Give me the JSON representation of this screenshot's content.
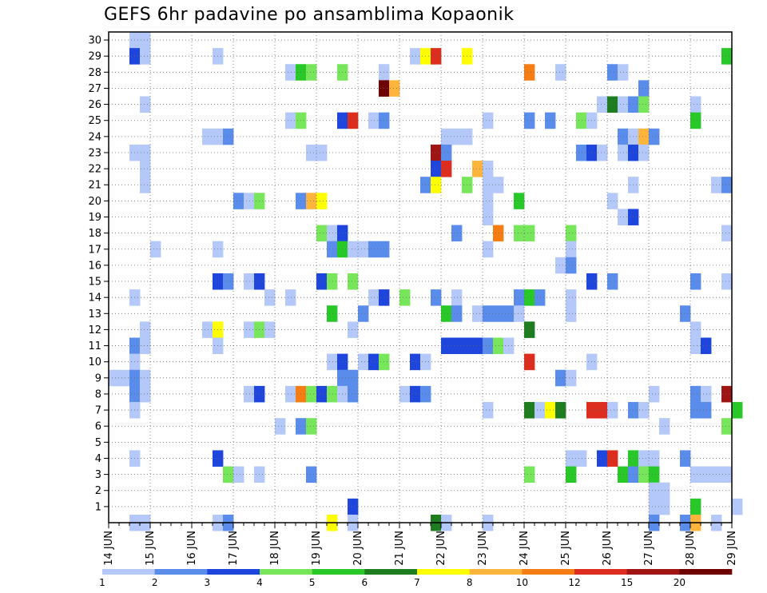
{
  "chart_data": {
    "type": "heatmap",
    "title": "GEFS 6hr padavine po ansamblima Kopaonik",
    "xlabel": "",
    "ylabel": "",
    "y_ticks": [
      "1",
      "2",
      "3",
      "4",
      "5",
      "6",
      "7",
      "8",
      "9",
      "10",
      "11",
      "12",
      "13",
      "14",
      "15",
      "16",
      "17",
      "18",
      "19",
      "20",
      "21",
      "22",
      "23",
      "24",
      "25",
      "26",
      "27",
      "28",
      "29",
      "30"
    ],
    "x_ticks": [
      "14 JUN",
      "15 JUN",
      "16 JUN",
      "17 JUN",
      "18 JUN",
      "19 JUN",
      "20 JUN",
      "21 JUN",
      "22 JUN",
      "23 JUN",
      "24 JUN",
      "25 JUN",
      "26 JUN",
      "27 JUN",
      "28 JUN",
      "29 JUN"
    ],
    "ylim": [
      0,
      30
    ],
    "grid": true,
    "colorbar": {
      "labels": [
        "1",
        "2",
        "3",
        "4",
        "5",
        "6",
        "7",
        "8",
        "10",
        "12",
        "15",
        "20"
      ],
      "colors": [
        "#b4c8fa",
        "#5a8ceb",
        "#1e46dc",
        "#78e65a",
        "#28c828",
        "#1e7d1e",
        "#ffff00",
        "#ffb43c",
        "#f57d14",
        "#dc2d1e",
        "#a01414",
        "#6e0000"
      ]
    },
    "cells": [
      [
        0.5,
        30,
        1
      ],
      [
        0.75,
        30,
        1
      ],
      [
        0.5,
        29,
        3
      ],
      [
        0.75,
        29,
        1
      ],
      [
        2.5,
        29,
        1
      ],
      [
        7.25,
        29,
        1
      ],
      [
        7.5,
        29,
        7
      ],
      [
        7.75,
        29,
        10
      ],
      [
        8.5,
        29,
        7
      ],
      [
        14.75,
        29,
        5
      ],
      [
        4.25,
        28,
        1
      ],
      [
        4.5,
        28,
        5
      ],
      [
        4.75,
        28,
        4
      ],
      [
        5.5,
        28,
        4
      ],
      [
        6.5,
        28,
        1
      ],
      [
        10,
        28,
        9
      ],
      [
        10.75,
        28,
        1
      ],
      [
        12,
        28,
        2
      ],
      [
        12.25,
        28,
        1
      ],
      [
        6.5,
        27,
        12
      ],
      [
        6.75,
        27,
        8
      ],
      [
        12.75,
        27,
        2
      ],
      [
        0.75,
        26,
        1
      ],
      [
        11.75,
        26,
        1
      ],
      [
        12,
        26,
        6
      ],
      [
        12.25,
        26,
        1
      ],
      [
        12.5,
        26,
        2
      ],
      [
        12.75,
        26,
        4
      ],
      [
        14,
        26,
        1
      ],
      [
        4.25,
        25,
        1
      ],
      [
        4.5,
        25,
        4
      ],
      [
        5.5,
        25,
        3
      ],
      [
        5.75,
        25,
        10
      ],
      [
        6.25,
        25,
        1
      ],
      [
        6.5,
        25,
        2
      ],
      [
        9,
        25,
        1
      ],
      [
        10,
        25,
        2
      ],
      [
        10.5,
        25,
        2
      ],
      [
        11.25,
        25,
        4
      ],
      [
        11.5,
        25,
        1
      ],
      [
        14,
        25,
        5
      ],
      [
        2.25,
        24,
        1
      ],
      [
        2.5,
        24,
        1
      ],
      [
        2.75,
        24,
        2
      ],
      [
        8,
        24,
        1
      ],
      [
        8.25,
        24,
        1
      ],
      [
        8.5,
        24,
        1
      ],
      [
        12.25,
        24,
        2
      ],
      [
        12.5,
        24,
        1
      ],
      [
        12.75,
        24,
        8
      ],
      [
        13,
        24,
        2
      ],
      [
        0.5,
        23,
        1
      ],
      [
        0.75,
        23,
        1
      ],
      [
        4.75,
        23,
        1
      ],
      [
        5,
        23,
        1
      ],
      [
        7.75,
        23,
        11
      ],
      [
        8,
        23,
        2
      ],
      [
        11.25,
        23,
        2
      ],
      [
        11.5,
        23,
        3
      ],
      [
        11.75,
        23,
        1
      ],
      [
        12.25,
        23,
        1
      ],
      [
        12.5,
        23,
        3
      ],
      [
        12.75,
        23,
        1
      ],
      [
        0.75,
        22,
        1
      ],
      [
        7.75,
        22,
        3
      ],
      [
        8,
        22,
        10
      ],
      [
        8.75,
        22,
        8
      ],
      [
        9,
        22,
        1
      ],
      [
        0.75,
        21,
        1
      ],
      [
        7.5,
        21,
        2
      ],
      [
        7.75,
        21,
        7
      ],
      [
        8.5,
        21,
        4
      ],
      [
        9,
        21,
        1
      ],
      [
        9.25,
        21,
        1
      ],
      [
        12.5,
        21,
        1
      ],
      [
        14.5,
        21,
        1
      ],
      [
        14.75,
        21,
        2
      ],
      [
        3,
        20,
        2
      ],
      [
        3.25,
        20,
        1
      ],
      [
        3.5,
        20,
        4
      ],
      [
        4.5,
        20,
        2
      ],
      [
        4.75,
        20,
        8
      ],
      [
        5,
        20,
        7
      ],
      [
        9,
        20,
        1
      ],
      [
        9.75,
        20,
        5
      ],
      [
        12,
        20,
        1
      ],
      [
        9,
        19,
        1
      ],
      [
        12.25,
        19,
        1
      ],
      [
        12.5,
        19,
        3
      ],
      [
        5,
        18,
        4
      ],
      [
        5.25,
        18,
        1
      ],
      [
        5.5,
        18,
        3
      ],
      [
        8.25,
        18,
        2
      ],
      [
        9.25,
        18,
        9
      ],
      [
        9.75,
        18,
        4
      ],
      [
        10,
        18,
        4
      ],
      [
        11,
        18,
        4
      ],
      [
        14.75,
        18,
        1
      ],
      [
        1,
        17,
        1
      ],
      [
        2.5,
        17,
        1
      ],
      [
        5.25,
        17,
        2
      ],
      [
        5.5,
        17,
        5
      ],
      [
        5.75,
        17,
        1
      ],
      [
        6,
        17,
        1
      ],
      [
        6.25,
        17,
        2
      ],
      [
        6.5,
        17,
        2
      ],
      [
        9,
        17,
        1
      ],
      [
        11,
        17,
        1
      ],
      [
        10.75,
        16,
        1
      ],
      [
        11,
        16,
        2
      ],
      [
        2.5,
        15,
        3
      ],
      [
        2.75,
        15,
        2
      ],
      [
        3.25,
        15,
        1
      ],
      [
        3.5,
        15,
        3
      ],
      [
        5,
        15,
        3
      ],
      [
        5.25,
        15,
        4
      ],
      [
        5.75,
        15,
        4
      ],
      [
        11.5,
        15,
        3
      ],
      [
        12,
        15,
        2
      ],
      [
        14,
        15,
        2
      ],
      [
        14.75,
        15,
        1
      ],
      [
        0.5,
        14,
        1
      ],
      [
        3.75,
        14,
        1
      ],
      [
        4.25,
        14,
        1
      ],
      [
        6.25,
        14,
        1
      ],
      [
        6.5,
        14,
        3
      ],
      [
        7,
        14,
        4
      ],
      [
        7.75,
        14,
        2
      ],
      [
        8.25,
        14,
        1
      ],
      [
        9.75,
        14,
        2
      ],
      [
        10,
        14,
        5
      ],
      [
        10.25,
        14,
        2
      ],
      [
        11,
        14,
        1
      ],
      [
        5.25,
        13,
        5
      ],
      [
        6,
        13,
        2
      ],
      [
        8,
        13,
        5
      ],
      [
        8.25,
        13,
        2
      ],
      [
        8.75,
        13,
        1
      ],
      [
        9,
        13,
        2
      ],
      [
        9.25,
        13,
        2
      ],
      [
        9.5,
        13,
        2
      ],
      [
        9.75,
        13,
        1
      ],
      [
        11,
        13,
        1
      ],
      [
        13.75,
        13,
        2
      ],
      [
        0.75,
        12,
        1
      ],
      [
        2.25,
        12,
        1
      ],
      [
        2.5,
        12,
        7
      ],
      [
        3.25,
        12,
        1
      ],
      [
        3.5,
        12,
        4
      ],
      [
        3.75,
        12,
        1
      ],
      [
        5.75,
        12,
        1
      ],
      [
        10,
        12,
        6
      ],
      [
        14,
        12,
        1
      ],
      [
        0.5,
        11,
        2
      ],
      [
        0.75,
        11,
        1
      ],
      [
        2.5,
        11,
        1
      ],
      [
        8,
        11,
        3
      ],
      [
        8.25,
        11,
        3
      ],
      [
        8.5,
        11,
        3
      ],
      [
        8.75,
        11,
        3
      ],
      [
        9,
        11,
        2
      ],
      [
        9.25,
        11,
        4
      ],
      [
        9.5,
        11,
        1
      ],
      [
        14,
        11,
        1
      ],
      [
        14.25,
        11,
        3
      ],
      [
        0.5,
        10,
        1
      ],
      [
        5.25,
        10,
        1
      ],
      [
        5.5,
        10,
        3
      ],
      [
        6,
        10,
        1
      ],
      [
        6.25,
        10,
        3
      ],
      [
        6.5,
        10,
        4
      ],
      [
        7.25,
        10,
        3
      ],
      [
        7.5,
        10,
        1
      ],
      [
        10,
        10,
        10
      ],
      [
        11.5,
        10,
        1
      ],
      [
        0,
        9,
        1
      ],
      [
        0.25,
        9,
        1
      ],
      [
        0.5,
        9,
        2
      ],
      [
        0.75,
        9,
        1
      ],
      [
        5.5,
        9,
        2
      ],
      [
        5.75,
        9,
        2
      ],
      [
        10.75,
        9,
        2
      ],
      [
        11,
        9,
        1
      ],
      [
        0.5,
        8,
        2
      ],
      [
        0.75,
        8,
        1
      ],
      [
        3.25,
        8,
        1
      ],
      [
        3.5,
        8,
        3
      ],
      [
        4.25,
        8,
        1
      ],
      [
        4.5,
        8,
        9
      ],
      [
        4.75,
        8,
        4
      ],
      [
        5,
        8,
        3
      ],
      [
        5.25,
        8,
        4
      ],
      [
        5.5,
        8,
        1
      ],
      [
        5.75,
        8,
        2
      ],
      [
        7,
        8,
        1
      ],
      [
        7.25,
        8,
        3
      ],
      [
        7.5,
        8,
        2
      ],
      [
        13,
        8,
        1
      ],
      [
        14,
        8,
        2
      ],
      [
        14.25,
        8,
        1
      ],
      [
        14.75,
        8,
        11
      ],
      [
        0.5,
        7,
        1
      ],
      [
        9,
        7,
        1
      ],
      [
        10,
        7,
        6
      ],
      [
        10.25,
        7,
        1
      ],
      [
        10.5,
        7,
        7
      ],
      [
        10.75,
        7,
        6
      ],
      [
        11.5,
        7,
        10
      ],
      [
        11.75,
        7,
        10
      ],
      [
        12,
        7,
        1
      ],
      [
        12.5,
        7,
        2
      ],
      [
        12.75,
        7,
        1
      ],
      [
        14,
        7,
        2
      ],
      [
        14.25,
        7,
        2
      ],
      [
        15,
        7,
        5
      ],
      [
        4,
        6,
        1
      ],
      [
        4.5,
        6,
        2
      ],
      [
        4.75,
        6,
        4
      ],
      [
        13.25,
        6,
        1
      ],
      [
        14.75,
        6,
        4
      ],
      [
        0.5,
        4,
        1
      ],
      [
        2.5,
        4,
        3
      ],
      [
        11,
        4,
        1
      ],
      [
        11.25,
        4,
        1
      ],
      [
        11.75,
        4,
        3
      ],
      [
        12,
        4,
        10
      ],
      [
        12.5,
        4,
        5
      ],
      [
        12.75,
        4,
        1
      ],
      [
        13,
        4,
        1
      ],
      [
        13.75,
        4,
        2
      ],
      [
        2.75,
        3,
        4
      ],
      [
        3,
        3,
        1
      ],
      [
        3.5,
        3,
        1
      ],
      [
        4.75,
        3,
        2
      ],
      [
        10,
        3,
        4
      ],
      [
        11,
        3,
        5
      ],
      [
        12.25,
        3,
        5
      ],
      [
        12.5,
        3,
        2
      ],
      [
        12.75,
        3,
        4
      ],
      [
        13,
        3,
        5
      ],
      [
        14,
        3,
        1
      ],
      [
        14.25,
        3,
        1
      ],
      [
        14.5,
        3,
        1
      ],
      [
        14.75,
        3,
        1
      ],
      [
        13,
        2,
        1
      ],
      [
        13.25,
        2,
        1
      ],
      [
        5.75,
        1,
        3
      ],
      [
        13,
        1,
        1
      ],
      [
        13.25,
        1,
        1
      ],
      [
        14,
        1,
        5
      ],
      [
        15,
        1,
        1
      ],
      [
        0.5,
        0,
        1
      ],
      [
        0.75,
        0,
        1
      ],
      [
        2.5,
        0,
        1
      ],
      [
        2.75,
        0,
        2
      ],
      [
        5.25,
        0,
        7
      ],
      [
        5.75,
        0,
        1
      ],
      [
        7.75,
        0,
        6
      ],
      [
        8,
        0,
        1
      ],
      [
        9,
        0,
        1
      ],
      [
        13,
        0,
        2
      ],
      [
        13.75,
        0,
        2
      ],
      [
        14,
        0,
        8
      ],
      [
        14.5,
        0,
        1
      ]
    ]
  }
}
